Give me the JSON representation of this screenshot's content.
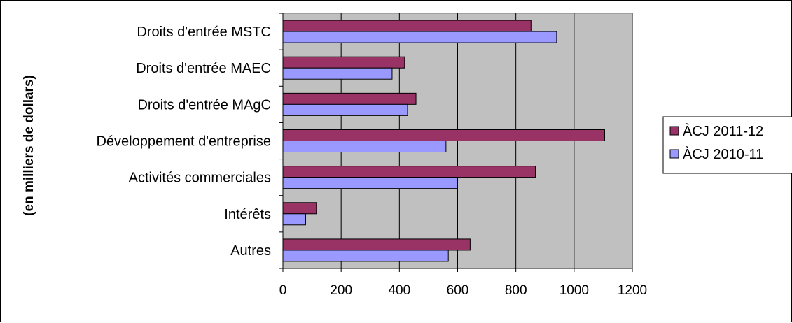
{
  "chart_data": {
    "type": "bar",
    "orientation": "horizontal",
    "ylabel": "(en milliers de dollars)",
    "categories": [
      "Droits d'entrée MSTC",
      "Droits d'entrée MAEC",
      "Droits d'entrée MAgC",
      "Développement d'entreprise",
      "Activités commerciales",
      "Intérêts",
      "Autres"
    ],
    "series": [
      {
        "name": "ÀCJ 2011-12",
        "color": "#993366",
        "values": [
          852,
          418,
          457,
          1105,
          867,
          115,
          643
        ]
      },
      {
        "name": "ÀCJ 2010-11",
        "color": "#9999ff",
        "values": [
          940,
          375,
          428,
          560,
          600,
          78,
          568
        ]
      }
    ],
    "xlim": [
      0,
      1200
    ],
    "xticks": [
      0,
      200,
      400,
      600,
      800,
      1000,
      1200
    ],
    "grid": true,
    "plot_background": "#c0c0c0",
    "legend_position": "right"
  }
}
